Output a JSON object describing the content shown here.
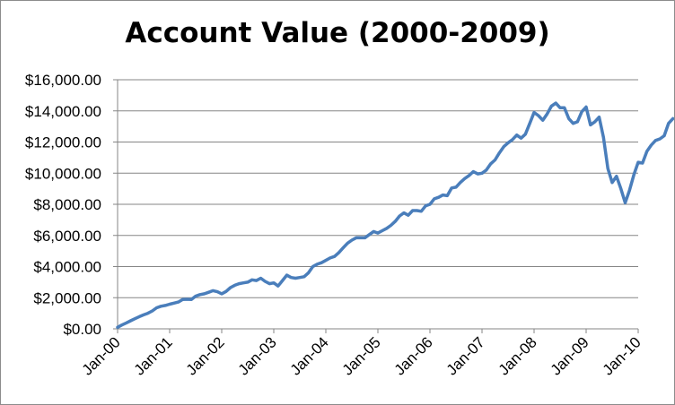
{
  "chart_data": {
    "type": "line",
    "title": "Account Value (2000-2009)",
    "xlabel": "",
    "ylabel": "",
    "ylim": [
      0,
      16000
    ],
    "y_ticks": [
      0,
      2000,
      4000,
      6000,
      8000,
      10000,
      12000,
      14000,
      16000
    ],
    "y_tick_labels": [
      "$0.00",
      "$2,000.00",
      "$4,000.00",
      "$6,000.00",
      "$8,000.00",
      "$10,000.00",
      "$12,000.00",
      "$14,000.00",
      "$16,000.00"
    ],
    "x_tick_labels": [
      "Jan-00",
      "Jan-01",
      "Jan-02",
      "Jan-03",
      "Jan-04",
      "Jan-05",
      "Jan-06",
      "Jan-07",
      "Jan-08",
      "Jan-09",
      "Jan-10"
    ],
    "grid": true,
    "legend": "none",
    "line_color": "#4a7ebb",
    "series": [
      {
        "values": [
          100,
          250,
          380,
          520,
          650,
          780,
          900,
          1000,
          1150,
          1350,
          1450,
          1500,
          1580,
          1650,
          1720,
          1880,
          1900,
          1880,
          2100,
          2200,
          2250,
          2350,
          2450,
          2380,
          2250,
          2400,
          2650,
          2800,
          2900,
          2950,
          3000,
          3150,
          3100,
          3250,
          3050,
          2900,
          2950,
          2750,
          3100,
          3450,
          3300,
          3250,
          3300,
          3350,
          3600,
          4000,
          4150,
          4250,
          4400,
          4550,
          4650,
          4900,
          5200,
          5500,
          5700,
          5850,
          5850,
          5850,
          6050,
          6250,
          6150,
          6300,
          6450,
          6650,
          6900,
          7250,
          7450,
          7300,
          7600,
          7600,
          7550,
          7900,
          8000,
          8350,
          8450,
          8600,
          8550,
          9050,
          9100,
          9400,
          9650,
          9850,
          10100,
          9950,
          10000,
          10200,
          10600,
          10850,
          11300,
          11700,
          11950,
          12150,
          12450,
          12250,
          12500,
          13200,
          13900,
          13700,
          13400,
          13800,
          14300,
          14500,
          14200,
          14200,
          13500,
          13200,
          13300,
          13950,
          14250,
          13100,
          13300,
          13600,
          12300,
          10300,
          9400,
          9800,
          9000,
          8100,
          8900,
          9900,
          10700,
          10650,
          11400,
          11800,
          12100,
          12200,
          12400,
          13200,
          13500
        ]
      }
    ]
  }
}
